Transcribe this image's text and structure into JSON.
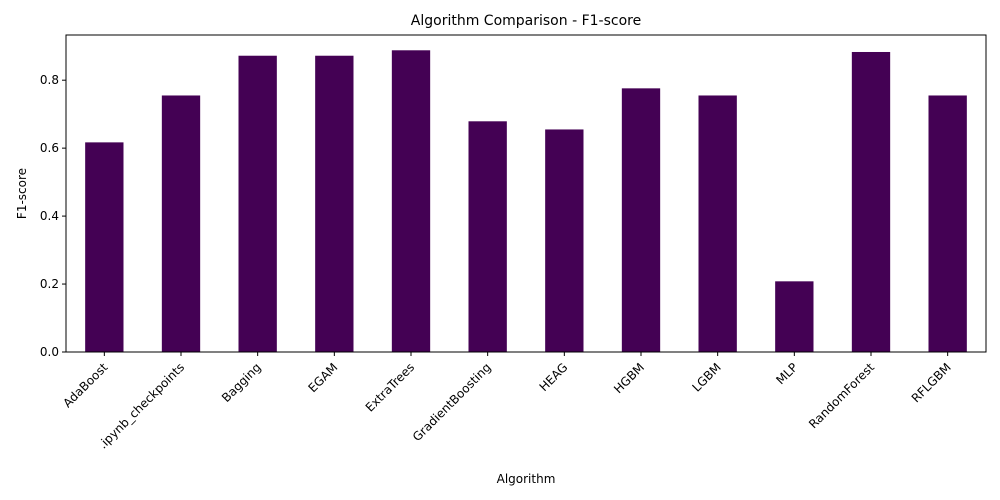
{
  "chart_data": {
    "type": "bar",
    "title": "Algorithm Comparison - F1-score",
    "xlabel": "Algorithm",
    "ylabel": "F1-score",
    "categories": [
      "AdaBoost",
      ".ipynb_checkpoints",
      "Bagging",
      "EGAM",
      "ExtraTrees",
      "GradientBoosting",
      "HEAG",
      "HGBM",
      "LGBM",
      "MLP",
      "RandomForest",
      "RFLGBM"
    ],
    "series": [
      {
        "values": [
          0.617,
          0.755,
          0.872,
          0.872,
          0.888,
          0.679,
          0.655,
          0.776,
          0.755,
          0.208,
          0.883,
          0.755
        ]
      }
    ],
    "yticks": [
      "0.0",
      "0.2",
      "0.4",
      "0.6",
      "0.8"
    ],
    "ylim": [
      0,
      0.933
    ],
    "grid": false,
    "legend": "none",
    "bar_color": "#440154"
  }
}
